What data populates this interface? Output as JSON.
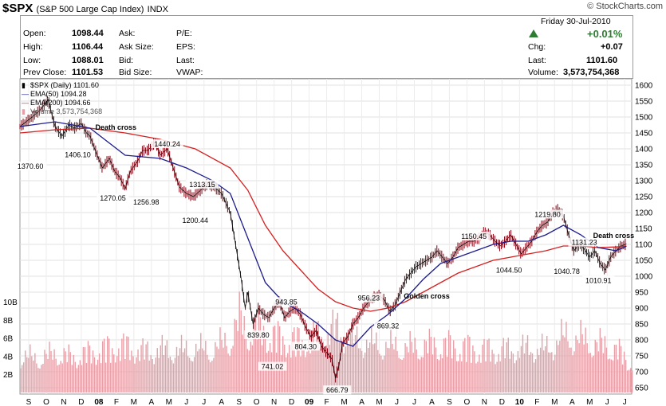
{
  "header": {
    "symbol": "$SPX",
    "name": "(S&P 500 Large Cap Index)",
    "exchange": "INDX",
    "credit": "© StockCharts.com"
  },
  "quote": {
    "open_label": "Open:",
    "open": "1098.44",
    "high_label": "High:",
    "high": "1106.44",
    "low_label": "Low:",
    "low": "1088.01",
    "prev_label": "Prev Close:",
    "prev": "1101.53",
    "ask_label": "Ask:",
    "ask_size_label": "Ask Size:",
    "bid_label": "Bid:",
    "bid_size_label": "Bid Size:",
    "pe_label": "P/E:",
    "eps_label": "EPS:",
    "last_label": "Last:",
    "vwap_label": "VWAP:",
    "date": "Friday   30-Jul-2010",
    "change_pct": "+0.01%",
    "chg_label": "Chg:",
    "chg": "+0.07",
    "last2_label": "Last:",
    "last2": "1101.60",
    "vol_label": "Volume:",
    "volume": "3,573,754,368",
    "up_color": "#2e7d32"
  },
  "legend": {
    "price": "$SPX (Daily) 1101.60",
    "ema50": "EMA(50) 1094.28",
    "ema200": "EMA(200) 1094.66",
    "volume": "Volume 3,573,754,368",
    "ema50_color": "#1c1c8c",
    "ema200_color": "#d42020",
    "volume_color": "#e8a0a8",
    "candle_color": "#8b0010"
  },
  "chart_data": {
    "type": "line",
    "y_ticks": [
      650,
      700,
      750,
      800,
      850,
      900,
      950,
      1000,
      1050,
      1100,
      1150,
      1200,
      1250,
      1300,
      1350,
      1400,
      1450,
      1500,
      1550,
      1600
    ],
    "ylim": [
      630,
      1620
    ],
    "volume_ticks": [
      "2B",
      "4B",
      "6B",
      "8B",
      "10B"
    ],
    "volume_tick_values": [
      2,
      4,
      6,
      8,
      10
    ],
    "volume_max": 13,
    "months": [
      "S",
      "O",
      "N",
      "D",
      "08",
      "F",
      "M",
      "A",
      "M",
      "J",
      "J",
      "A",
      "S",
      "O",
      "N",
      "D",
      "09",
      "F",
      "M",
      "A",
      "M",
      "J",
      "J",
      "A",
      "S",
      "O",
      "N",
      "D",
      "10",
      "F",
      "M",
      "A",
      "M",
      "J",
      "J"
    ],
    "month_index_start": 0,
    "month_index_end": 34.9,
    "price": [
      [
        0,
        1470
      ],
      [
        0.7,
        1500
      ],
      [
        1.2,
        1525
      ],
      [
        1.6,
        1555
      ],
      [
        2.0,
        1470
      ],
      [
        2.4,
        1440
      ],
      [
        2.8,
        1475
      ],
      [
        3.1,
        1465
      ],
      [
        3.5,
        1480
      ],
      [
        3.8,
        1450
      ],
      [
        4.0,
        1440
      ],
      [
        4.3,
        1395
      ],
      [
        4.7,
        1340
      ],
      [
        5.1,
        1370
      ],
      [
        5.4,
        1330
      ],
      [
        5.7,
        1310
      ],
      [
        6.0,
        1275
      ],
      [
        6.3,
        1330
      ],
      [
        6.7,
        1360
      ],
      [
        7.0,
        1395
      ],
      [
        7.3,
        1395
      ],
      [
        7.7,
        1420
      ],
      [
        8.0,
        1380
      ],
      [
        8.4,
        1400
      ],
      [
        8.8,
        1330
      ],
      [
        9.1,
        1280
      ],
      [
        9.5,
        1260
      ],
      [
        9.9,
        1250
      ],
      [
        10.3,
        1270
      ],
      [
        10.7,
        1290
      ],
      [
        11.1,
        1280
      ],
      [
        11.5,
        1260
      ],
      [
        12.0,
        1200
      ],
      [
        12.3,
        1100
      ],
      [
        12.6,
        1000
      ],
      [
        12.85,
        900
      ],
      [
        13.0,
        950
      ],
      [
        13.3,
        850
      ],
      [
        13.6,
        900
      ],
      [
        13.9,
        880
      ],
      [
        14.2,
        870
      ],
      [
        14.5,
        900
      ],
      [
        14.8,
        920
      ],
      [
        15.1,
        870
      ],
      [
        15.4,
        890
      ],
      [
        15.7,
        900
      ],
      [
        16.0,
        880
      ],
      [
        16.3,
        840
      ],
      [
        16.6,
        810
      ],
      [
        16.9,
        830
      ],
      [
        17.2,
        780
      ],
      [
        17.5,
        760
      ],
      [
        17.8,
        740
      ],
      [
        18.0,
        680
      ],
      [
        18.2,
        720
      ],
      [
        18.4,
        790
      ],
      [
        18.7,
        810
      ],
      [
        19.0,
        850
      ],
      [
        19.3,
        870
      ],
      [
        19.6,
        900
      ],
      [
        19.9,
        920
      ],
      [
        20.2,
        935
      ],
      [
        20.5,
        940
      ],
      [
        20.8,
        925
      ],
      [
        21.1,
        890
      ],
      [
        21.4,
        910
      ],
      [
        21.7,
        950
      ],
      [
        22.0,
        990
      ],
      [
        22.3,
        1010
      ],
      [
        22.6,
        1030
      ],
      [
        22.9,
        1040
      ],
      [
        23.2,
        1050
      ],
      [
        23.5,
        1060
      ],
      [
        23.8,
        1080
      ],
      [
        24.1,
        1060
      ],
      [
        24.4,
        1040
      ],
      [
        24.7,
        1060
      ],
      [
        25.0,
        1090
      ],
      [
        25.3,
        1100
      ],
      [
        25.6,
        1110
      ],
      [
        25.9,
        1110
      ],
      [
        26.2,
        1120
      ],
      [
        26.5,
        1140
      ],
      [
        26.8,
        1130
      ],
      [
        27.1,
        1110
      ],
      [
        27.4,
        1095
      ],
      [
        27.7,
        1110
      ],
      [
        28.0,
        1130
      ],
      [
        28.3,
        1100
      ],
      [
        28.6,
        1070
      ],
      [
        28.9,
        1090
      ],
      [
        29.2,
        1110
      ],
      [
        29.5,
        1140
      ],
      [
        29.8,
        1160
      ],
      [
        30.1,
        1170
      ],
      [
        30.4,
        1200
      ],
      [
        30.7,
        1210
      ],
      [
        31.0,
        1190
      ],
      [
        31.3,
        1130
      ],
      [
        31.6,
        1080
      ],
      [
        31.9,
        1100
      ],
      [
        32.2,
        1085
      ],
      [
        32.5,
        1060
      ],
      [
        32.8,
        1080
      ],
      [
        33.1,
        1040
      ],
      [
        33.4,
        1020
      ],
      [
        33.7,
        1060
      ],
      [
        34.0,
        1080
      ],
      [
        34.3,
        1095
      ],
      [
        34.6,
        1101.6
      ]
    ],
    "ema50": [
      [
        0,
        1470
      ],
      [
        2,
        1485
      ],
      [
        4,
        1465
      ],
      [
        6,
        1380
      ],
      [
        8,
        1370
      ],
      [
        9.5,
        1340
      ],
      [
        11,
        1300
      ],
      [
        12,
        1260
      ],
      [
        13,
        1120
      ],
      [
        14,
        980
      ],
      [
        15,
        920
      ],
      [
        16,
        890
      ],
      [
        17,
        850
      ],
      [
        18,
        800
      ],
      [
        19,
        780
      ],
      [
        20,
        840
      ],
      [
        21,
        880
      ],
      [
        22,
        930
      ],
      [
        23,
        990
      ],
      [
        24,
        1040
      ],
      [
        25,
        1060
      ],
      [
        26,
        1080
      ],
      [
        27,
        1100
      ],
      [
        28,
        1110
      ],
      [
        29,
        1110
      ],
      [
        30,
        1130
      ],
      [
        31,
        1160
      ],
      [
        32,
        1130
      ],
      [
        33,
        1090
      ],
      [
        34,
        1080
      ],
      [
        34.6,
        1094.28
      ]
    ],
    "ema200": [
      [
        0,
        1450
      ],
      [
        2,
        1460
      ],
      [
        4,
        1465
      ],
      [
        6,
        1450
      ],
      [
        8,
        1430
      ],
      [
        10,
        1400
      ],
      [
        12,
        1340
      ],
      [
        13,
        1270
      ],
      [
        14,
        1160
      ],
      [
        15,
        1080
      ],
      [
        16,
        1020
      ],
      [
        17,
        960
      ],
      [
        18,
        920
      ],
      [
        19,
        900
      ],
      [
        20,
        890
      ],
      [
        21,
        900
      ],
      [
        22,
        920
      ],
      [
        23,
        950
      ],
      [
        24,
        980
      ],
      [
        25,
        1010
      ],
      [
        26,
        1030
      ],
      [
        27,
        1050
      ],
      [
        28,
        1060
      ],
      [
        29,
        1070
      ],
      [
        30,
        1080
      ],
      [
        31,
        1095
      ],
      [
        32,
        1095
      ],
      [
        33,
        1090
      ],
      [
        34,
        1092
      ],
      [
        34.6,
        1094.66
      ]
    ],
    "volume": [
      [
        0,
        4.1
      ],
      [
        1,
        3.8
      ],
      [
        2,
        4.4
      ],
      [
        3,
        3.9
      ],
      [
        4,
        4.5
      ],
      [
        5,
        5.0
      ],
      [
        6,
        5.2
      ],
      [
        7,
        4.6
      ],
      [
        8,
        4.8
      ],
      [
        9,
        4.7
      ],
      [
        10,
        4.9
      ],
      [
        11,
        4.8
      ],
      [
        12,
        6.2
      ],
      [
        12.5,
        8.4
      ],
      [
        13,
        6.8
      ],
      [
        13.5,
        7.5
      ],
      [
        14,
        6.6
      ],
      [
        15,
        6.0
      ],
      [
        16,
        5.8
      ],
      [
        17,
        6.4
      ],
      [
        18,
        7.2
      ],
      [
        19,
        6.0
      ],
      [
        20,
        5.5
      ],
      [
        21,
        5.2
      ],
      [
        22,
        5.0
      ],
      [
        23,
        5.3
      ],
      [
        24,
        5.4
      ],
      [
        25,
        5.2
      ],
      [
        26,
        4.9
      ],
      [
        27,
        4.7
      ],
      [
        28,
        4.8
      ],
      [
        29,
        5.0
      ],
      [
        30,
        4.9
      ],
      [
        31,
        6.3
      ],
      [
        32,
        6.0
      ],
      [
        33,
        5.4
      ],
      [
        34,
        4.9
      ],
      [
        34.6,
        3.57
      ]
    ],
    "annotations": [
      {
        "text": "1370.60",
        "x": 0.6,
        "y": 1370
      },
      {
        "text": "1406.10",
        "x": 3.3,
        "y": 1406
      },
      {
        "text": "1270.05",
        "x": 5.3,
        "y": 1270
      },
      {
        "text": "1256.98",
        "x": 7.2,
        "y": 1257
      },
      {
        "text": "1440.24",
        "x": 8.4,
        "y": 1440
      },
      {
        "text": "1313.15",
        "x": 10.4,
        "y": 1313
      },
      {
        "text": "1200.44",
        "x": 10.0,
        "y": 1200
      },
      {
        "text": "839.80",
        "x": 13.6,
        "y": 840
      },
      {
        "text": "943.85",
        "x": 15.2,
        "y": 944
      },
      {
        "text": "741.02",
        "x": 14.4,
        "y": 741
      },
      {
        "text": "804.30",
        "x": 16.3,
        "y": 804
      },
      {
        "text": "666.79",
        "x": 18.1,
        "y": 667
      },
      {
        "text": "956.23",
        "x": 19.9,
        "y": 956
      },
      {
        "text": "869.32",
        "x": 21.0,
        "y": 869
      },
      {
        "text": "1150.45",
        "x": 25.9,
        "y": 1150
      },
      {
        "text": "1044.50",
        "x": 27.9,
        "y": 1044
      },
      {
        "text": "1219.80",
        "x": 30.1,
        "y": 1219
      },
      {
        "text": "1131.23",
        "x": 32.2,
        "y": 1131
      },
      {
        "text": "1040.78",
        "x": 31.2,
        "y": 1040
      },
      {
        "text": "1010.91",
        "x": 33.0,
        "y": 1011
      }
    ],
    "callouts": [
      {
        "text": "Death cross",
        "x": 4.3,
        "y": 1460
      },
      {
        "text": "Golden cross",
        "x": 21.9,
        "y": 930
      },
      {
        "text": "Death cross",
        "x": 32.7,
        "y": 1120
      }
    ]
  }
}
